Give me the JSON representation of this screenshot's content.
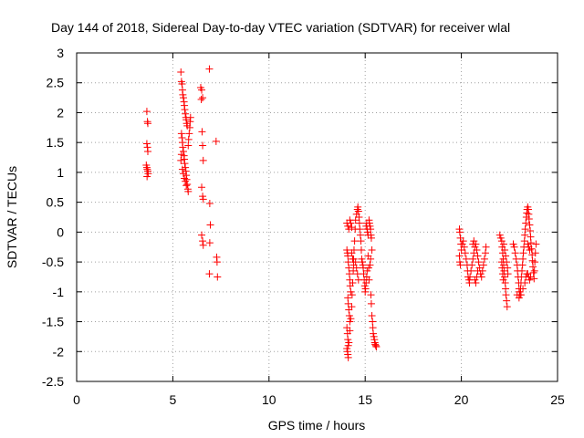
{
  "chart_data": {
    "type": "scatter",
    "title": "Day 144 of 2018, Sidereal Day-to-day VTEC variation (SDTVAR) for receiver wlal",
    "xlabel": "GPS time / hours",
    "ylabel": "SDTVAR / TECUs",
    "xlim": [
      0,
      25
    ],
    "ylim": [
      -2.5,
      3
    ],
    "xticks": [
      0,
      5,
      10,
      15,
      20,
      25
    ],
    "yticks": [
      -2.5,
      -2,
      -1.5,
      -1,
      -0.5,
      0,
      0.5,
      1,
      1.5,
      2,
      2.5,
      3
    ],
    "grid": true,
    "marker": "+",
    "series": [
      {
        "name": "SDTVAR",
        "color": "#ff0000",
        "points": [
          [
            3.65,
            2.02
          ],
          [
            3.68,
            1.85
          ],
          [
            3.7,
            1.82
          ],
          [
            3.65,
            1.48
          ],
          [
            3.68,
            1.42
          ],
          [
            3.7,
            1.35
          ],
          [
            3.62,
            1.12
          ],
          [
            3.65,
            1.08
          ],
          [
            3.67,
            1.05
          ],
          [
            3.7,
            1.02
          ],
          [
            3.72,
            0.98
          ],
          [
            3.66,
            0.93
          ],
          [
            5.42,
            2.68
          ],
          [
            5.45,
            2.52
          ],
          [
            5.48,
            2.48
          ],
          [
            5.5,
            2.38
          ],
          [
            5.52,
            2.3
          ],
          [
            5.55,
            2.25
          ],
          [
            5.58,
            2.18
          ],
          [
            5.6,
            2.12
          ],
          [
            5.62,
            2.05
          ],
          [
            5.65,
            1.98
          ],
          [
            5.68,
            1.92
          ],
          [
            5.7,
            1.88
          ],
          [
            5.72,
            1.82
          ],
          [
            5.75,
            1.78
          ],
          [
            5.45,
            1.65
          ],
          [
            5.48,
            1.58
          ],
          [
            5.5,
            1.5
          ],
          [
            5.52,
            1.42
          ],
          [
            5.55,
            1.35
          ],
          [
            5.58,
            1.28
          ],
          [
            5.6,
            1.22
          ],
          [
            5.62,
            1.15
          ],
          [
            5.65,
            1.08
          ],
          [
            5.68,
            1.02
          ],
          [
            5.7,
            0.95
          ],
          [
            5.72,
            0.88
          ],
          [
            5.75,
            0.8
          ],
          [
            5.78,
            0.72
          ],
          [
            5.8,
            0.68
          ],
          [
            5.42,
            1.2
          ],
          [
            5.45,
            1.3
          ],
          [
            5.8,
            1.45
          ],
          [
            5.82,
            1.55
          ],
          [
            5.85,
            1.65
          ],
          [
            5.88,
            1.75
          ],
          [
            5.9,
            1.85
          ],
          [
            5.92,
            1.92
          ],
          [
            5.5,
            1.05
          ],
          [
            5.55,
            0.98
          ],
          [
            5.6,
            0.9
          ],
          [
            5.65,
            0.85
          ],
          [
            5.7,
            0.78
          ],
          [
            6.45,
            2.42
          ],
          [
            6.5,
            2.38
          ],
          [
            6.55,
            2.25
          ],
          [
            6.48,
            2.22
          ],
          [
            6.52,
            1.68
          ],
          [
            6.55,
            1.45
          ],
          [
            6.58,
            1.2
          ],
          [
            6.5,
            0.75
          ],
          [
            6.55,
            0.6
          ],
          [
            6.58,
            0.55
          ],
          [
            6.5,
            -0.05
          ],
          [
            6.55,
            -0.15
          ],
          [
            6.58,
            -0.22
          ],
          [
            6.9,
            2.73
          ],
          [
            6.92,
            0.48
          ],
          [
            6.95,
            0.12
          ],
          [
            6.92,
            -0.18
          ],
          [
            6.9,
            -0.7
          ],
          [
            7.25,
            1.52
          ],
          [
            7.28,
            -0.42
          ],
          [
            7.3,
            -0.5
          ],
          [
            7.32,
            -0.75
          ],
          [
            14.05,
            0.15
          ],
          [
            14.1,
            0.1
          ],
          [
            14.15,
            0.05
          ],
          [
            14.2,
            0.2
          ],
          [
            14.25,
            0.15
          ],
          [
            14.3,
            0.08
          ],
          [
            14.05,
            -0.3
          ],
          [
            14.08,
            -0.35
          ],
          [
            14.1,
            -0.4
          ],
          [
            14.12,
            -0.5
          ],
          [
            14.15,
            -0.6
          ],
          [
            14.18,
            -0.7
          ],
          [
            14.2,
            -0.8
          ],
          [
            14.22,
            -0.9
          ],
          [
            14.25,
            -1.0
          ],
          [
            14.1,
            -1.1
          ],
          [
            14.12,
            -1.2
          ],
          [
            14.15,
            -1.3
          ],
          [
            14.18,
            -1.4
          ],
          [
            14.2,
            -1.5
          ],
          [
            14.05,
            -1.6
          ],
          [
            14.08,
            -1.7
          ],
          [
            14.1,
            -1.8
          ],
          [
            14.12,
            -1.9
          ],
          [
            14.05,
            -1.95
          ],
          [
            14.08,
            -2.0
          ],
          [
            14.1,
            -2.05
          ],
          [
            14.12,
            -2.1
          ],
          [
            14.15,
            -1.85
          ],
          [
            14.2,
            -1.65
          ],
          [
            14.25,
            -1.45
          ],
          [
            14.3,
            -1.25
          ],
          [
            14.32,
            -1.05
          ],
          [
            14.35,
            -0.85
          ],
          [
            14.38,
            -0.65
          ],
          [
            14.4,
            -0.45
          ],
          [
            14.42,
            -0.3
          ],
          [
            14.45,
            -0.15
          ],
          [
            14.48,
            0.05
          ],
          [
            14.5,
            0.2
          ],
          [
            14.55,
            0.3
          ],
          [
            14.6,
            0.38
          ],
          [
            14.62,
            0.42
          ],
          [
            14.65,
            0.35
          ],
          [
            14.68,
            0.25
          ],
          [
            14.7,
            0.15
          ],
          [
            14.72,
            0.05
          ],
          [
            14.75,
            -0.05
          ],
          [
            14.78,
            -0.15
          ],
          [
            14.8,
            -0.3
          ],
          [
            14.82,
            -0.45
          ],
          [
            14.85,
            -0.5
          ],
          [
            14.88,
            -0.55
          ],
          [
            14.9,
            -0.6
          ],
          [
            14.92,
            -0.7
          ],
          [
            14.95,
            -0.8
          ],
          [
            14.98,
            -0.9
          ],
          [
            15.0,
            -1.0
          ],
          [
            15.02,
            -0.95
          ],
          [
            15.05,
            -0.85
          ],
          [
            15.08,
            -0.75
          ],
          [
            15.1,
            -0.65
          ],
          [
            14.5,
            -0.5
          ],
          [
            14.55,
            -0.6
          ],
          [
            14.6,
            -0.7
          ],
          [
            14.65,
            -0.8
          ],
          [
            14.3,
            -0.35
          ],
          [
            14.35,
            -0.45
          ],
          [
            14.4,
            -0.55
          ],
          [
            15.05,
            0.1
          ],
          [
            15.08,
            0.15
          ],
          [
            15.1,
            0.05
          ],
          [
            15.12,
            0.0
          ],
          [
            15.15,
            -0.05
          ],
          [
            15.2,
            0.2
          ],
          [
            15.22,
            0.15
          ],
          [
            15.25,
            0.1
          ],
          [
            15.28,
            0.05
          ],
          [
            15.3,
            -0.05
          ],
          [
            15.32,
            -0.1
          ],
          [
            15.35,
            -0.3
          ],
          [
            15.3,
            -1.05
          ],
          [
            15.32,
            -1.2
          ],
          [
            15.35,
            -1.4
          ],
          [
            15.38,
            -1.5
          ],
          [
            15.4,
            -1.6
          ],
          [
            15.42,
            -1.7
          ],
          [
            15.45,
            -1.75
          ],
          [
            15.48,
            -1.8
          ],
          [
            15.5,
            -1.85
          ],
          [
            15.52,
            -1.88
          ],
          [
            15.55,
            -1.9
          ],
          [
            15.58,
            -1.92
          ],
          [
            15.15,
            -0.4
          ],
          [
            15.18,
            -0.6
          ],
          [
            15.2,
            -0.8
          ],
          [
            15.25,
            -0.55
          ],
          [
            15.28,
            -0.45
          ],
          [
            19.9,
            0.05
          ],
          [
            19.92,
            0.0
          ],
          [
            19.95,
            -0.1
          ],
          [
            19.98,
            -0.2
          ],
          [
            20.0,
            -0.3
          ],
          [
            19.9,
            -0.4
          ],
          [
            19.92,
            -0.5
          ],
          [
            19.95,
            -0.55
          ],
          [
            20.05,
            -0.2
          ],
          [
            20.1,
            -0.15
          ],
          [
            20.15,
            -0.25
          ],
          [
            20.2,
            -0.35
          ],
          [
            20.25,
            -0.45
          ],
          [
            20.3,
            -0.55
          ],
          [
            20.32,
            -0.65
          ],
          [
            20.35,
            -0.75
          ],
          [
            20.4,
            -0.8
          ],
          [
            20.42,
            -0.85
          ],
          [
            20.45,
            -0.75
          ],
          [
            20.5,
            -0.65
          ],
          [
            20.55,
            -0.55
          ],
          [
            20.6,
            -0.45
          ],
          [
            20.65,
            -0.35
          ],
          [
            20.7,
            -0.25
          ],
          [
            20.75,
            -0.2
          ],
          [
            20.8,
            -0.3
          ],
          [
            20.85,
            -0.4
          ],
          [
            20.9,
            -0.5
          ],
          [
            20.95,
            -0.6
          ],
          [
            21.0,
            -0.7
          ],
          [
            21.05,
            -0.75
          ],
          [
            21.1,
            -0.65
          ],
          [
            21.15,
            -0.55
          ],
          [
            21.2,
            -0.45
          ],
          [
            21.25,
            -0.35
          ],
          [
            21.28,
            -0.25
          ],
          [
            20.6,
            -0.2
          ],
          [
            20.65,
            -0.15
          ],
          [
            20.7,
            -0.8
          ],
          [
            20.75,
            -0.85
          ],
          [
            20.8,
            -0.75
          ],
          [
            20.85,
            -0.65
          ],
          [
            22.0,
            -0.05
          ],
          [
            22.05,
            -0.1
          ],
          [
            22.1,
            -0.15
          ],
          [
            22.12,
            -0.25
          ],
          [
            22.15,
            -0.35
          ],
          [
            22.18,
            -0.45
          ],
          [
            22.2,
            -0.55
          ],
          [
            22.22,
            -0.65
          ],
          [
            22.25,
            -0.75
          ],
          [
            22.28,
            -0.85
          ],
          [
            22.3,
            -0.95
          ],
          [
            22.32,
            -1.05
          ],
          [
            22.35,
            -1.15
          ],
          [
            22.38,
            -1.25
          ],
          [
            22.1,
            -0.5
          ],
          [
            22.12,
            -0.6
          ],
          [
            22.15,
            -0.7
          ],
          [
            22.18,
            -0.8
          ],
          [
            22.2,
            -0.2
          ],
          [
            22.25,
            -0.3
          ],
          [
            22.3,
            -0.4
          ],
          [
            22.35,
            -0.5
          ],
          [
            22.4,
            -0.6
          ],
          [
            22.42,
            -0.7
          ],
          [
            22.7,
            -0.2
          ],
          [
            22.75,
            -0.25
          ],
          [
            22.8,
            -0.35
          ],
          [
            22.85,
            -0.45
          ],
          [
            22.9,
            -0.55
          ],
          [
            22.92,
            -0.65
          ],
          [
            22.95,
            -0.75
          ],
          [
            22.98,
            -0.85
          ],
          [
            23.0,
            -0.95
          ],
          [
            23.02,
            -1.0
          ],
          [
            23.05,
            -1.05
          ],
          [
            23.08,
            -0.95
          ],
          [
            23.1,
            -0.85
          ],
          [
            23.12,
            -0.75
          ],
          [
            23.15,
            -0.65
          ],
          [
            23.18,
            -0.55
          ],
          [
            23.2,
            -0.45
          ],
          [
            23.22,
            -0.35
          ],
          [
            23.25,
            -0.25
          ],
          [
            23.28,
            -0.15
          ],
          [
            23.3,
            -0.05
          ],
          [
            23.32,
            0.05
          ],
          [
            23.35,
            0.15
          ],
          [
            23.38,
            0.25
          ],
          [
            23.4,
            0.32
          ],
          [
            23.42,
            0.38
          ],
          [
            23.45,
            0.42
          ],
          [
            23.48,
            0.38
          ],
          [
            23.5,
            0.3
          ],
          [
            23.52,
            0.22
          ],
          [
            23.55,
            0.12
          ],
          [
            23.58,
            0.02
          ],
          [
            23.6,
            -0.08
          ],
          [
            23.62,
            -0.18
          ],
          [
            23.65,
            -0.28
          ],
          [
            23.68,
            -0.38
          ],
          [
            23.7,
            -0.48
          ],
          [
            23.72,
            -0.58
          ],
          [
            23.75,
            -0.68
          ],
          [
            23.78,
            -0.78
          ],
          [
            23.8,
            -0.65
          ],
          [
            23.82,
            -0.5
          ],
          [
            23.85,
            -0.35
          ],
          [
            23.88,
            -0.2
          ],
          [
            23.6,
            -0.75
          ],
          [
            23.55,
            -0.8
          ],
          [
            23.5,
            -0.75
          ],
          [
            23.45,
            -0.7
          ],
          [
            22.9,
            -1.05
          ],
          [
            23.0,
            -1.1
          ],
          [
            23.1,
            -1.05
          ],
          [
            23.2,
            -0.95
          ],
          [
            23.3,
            -0.85
          ],
          [
            23.35,
            -0.75
          ],
          [
            23.4,
            -0.7
          ],
          [
            23.45,
            -0.2
          ],
          [
            23.5,
            -0.25
          ],
          [
            23.55,
            -0.3
          ]
        ]
      }
    ]
  }
}
